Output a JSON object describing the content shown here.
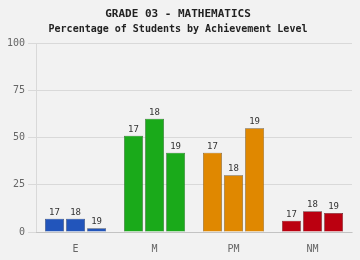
{
  "chart_data": {
    "type": "bar",
    "title": "GRADE 03 - MATHEMATICS",
    "subtitle": "Percentage of Students by Achievement Level",
    "categories": [
      "E",
      "M",
      "PM",
      "NM"
    ],
    "series": [
      {
        "name": "17",
        "values": [
          7,
          51,
          42,
          6
        ],
        "colors": [
          "#2255bb",
          "#1aaa1a",
          "#e08800",
          "#bb0010"
        ]
      },
      {
        "name": "18",
        "values": [
          7,
          60,
          30,
          11
        ],
        "colors": [
          "#2255bb",
          "#1aaa1a",
          "#e08800",
          "#bb0010"
        ]
      },
      {
        "name": "19",
        "values": [
          2,
          42,
          55,
          10
        ],
        "colors": [
          "#2255bb",
          "#1aaa1a",
          "#e08800",
          "#bb0010"
        ]
      }
    ],
    "ylim": [
      0,
      100
    ],
    "yticks": [
      0,
      25,
      50,
      75,
      100
    ],
    "grid": true
  }
}
